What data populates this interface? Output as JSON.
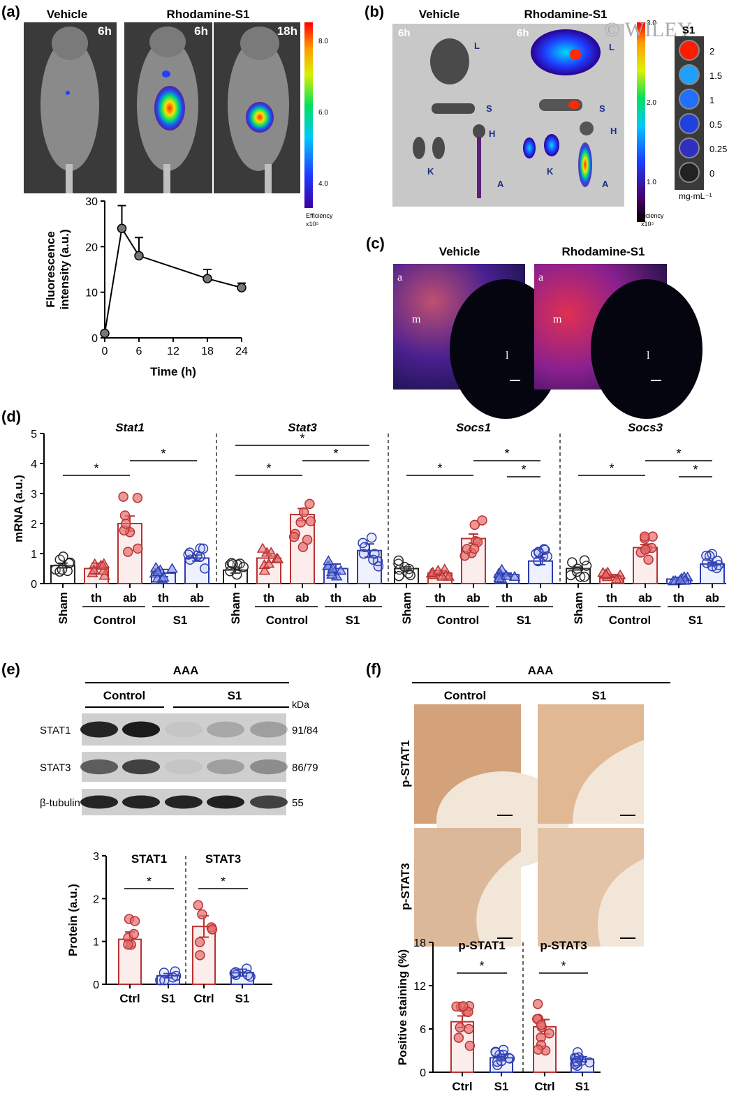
{
  "watermark": "© WILEY",
  "panel_a": {
    "label": "(a)",
    "col_vehicle": "Vehicle",
    "col_rhod": "Rhodamine-S1",
    "time_labels": [
      "6h",
      "6h",
      "18h"
    ],
    "colorbar": {
      "ticks": [
        "8.0",
        "6.0",
        "4.0"
      ],
      "label": "Efficiency",
      "unit": "x10⁵"
    },
    "chart_data": {
      "type": "line",
      "x": [
        0,
        3,
        6,
        18,
        24
      ],
      "y": [
        1,
        24,
        18,
        13,
        11
      ],
      "err": [
        0,
        5,
        4,
        2,
        1
      ],
      "xlabel": "Time (h)",
      "ylabel": "Fluorescence intensity (a.u.)",
      "xticks": [
        "0",
        "6",
        "12",
        "18",
        "24"
      ],
      "yticks": [
        "0",
        "10",
        "20",
        "30"
      ],
      "xlim": [
        0,
        24
      ],
      "ylim": [
        0,
        30
      ]
    }
  },
  "panel_b": {
    "label": "(b)",
    "col_vehicle": "Vehicle",
    "col_rhod": "Rhodamine-S1",
    "time_labels": [
      "6h",
      "6h"
    ],
    "organ_letters_vehicle": [
      "L",
      "S",
      "H",
      "K",
      "A"
    ],
    "organ_letters_rhod": [
      "L",
      "S",
      "H",
      "K",
      "A"
    ],
    "colorbar": {
      "ticks": [
        "3.0",
        "2.0",
        "1.0"
      ],
      "label": "Efficiency",
      "unit": "x10⁵"
    },
    "standards_title": "S1",
    "standards": [
      "2",
      "1.5",
      "1",
      "0.5",
      "0.25",
      "0"
    ],
    "standards_unit": "mg·mL⁻¹"
  },
  "panel_c": {
    "label": "(c)",
    "col_vehicle": "Vehicle",
    "col_rhod": "Rhodamine-S1",
    "letters": [
      "a",
      "m",
      "l"
    ]
  },
  "panel_d": {
    "label": "(d)",
    "ylabel": "mRNA (a.u.)",
    "yticks": [
      "0",
      "1",
      "2",
      "3",
      "4",
      "5"
    ],
    "ylim": [
      0,
      5
    ],
    "categories": [
      "Sham",
      "th",
      "ab",
      "th",
      "ab"
    ],
    "groups": [
      "Control",
      "S1"
    ],
    "chart_data": [
      {
        "type": "bar",
        "title": "Stat1",
        "values": [
          0.6,
          0.5,
          2.0,
          0.35,
          0.85
        ],
        "err": [
          0.08,
          0.18,
          0.25,
          0.12,
          0.1
        ]
      },
      {
        "type": "bar",
        "title": "Stat3",
        "values": [
          0.45,
          0.85,
          2.3,
          0.5,
          1.1
        ],
        "err": [
          0.1,
          0.15,
          0.2,
          0.15,
          0.22
        ]
      },
      {
        "type": "bar",
        "title": "Socs1",
        "values": [
          0.5,
          0.35,
          1.5,
          0.3,
          0.75
        ],
        "err": [
          0.06,
          0.08,
          0.15,
          0.05,
          0.12
        ]
      },
      {
        "type": "bar",
        "title": "Socs3",
        "values": [
          0.5,
          0.25,
          1.2,
          0.15,
          0.65
        ],
        "err": [
          0.05,
          0.05,
          0.1,
          0.06,
          0.06
        ]
      }
    ]
  },
  "panel_e": {
    "label": "(e)",
    "group_header": "AAA",
    "col_control": "Control",
    "col_s1": "S1",
    "kda_label": "kDa",
    "blot_rows": [
      {
        "name": "STAT1",
        "kda": "91/84"
      },
      {
        "name": "STAT3",
        "kda": "86/79"
      },
      {
        "name": "β-tubulin",
        "kda": "55"
      }
    ],
    "ylabel": "Protein (a.u.)",
    "yticks": [
      "0",
      "1",
      "2",
      "3"
    ],
    "xcats": [
      "Ctrl",
      "S1"
    ],
    "chart_data": [
      {
        "type": "bar",
        "title": "STAT1",
        "categories": [
          "Ctrl",
          "S1"
        ],
        "values": [
          1.05,
          0.2
        ],
        "err": [
          0.17,
          0.05
        ],
        "ylim": [
          0,
          3
        ]
      },
      {
        "type": "bar",
        "title": "STAT3",
        "categories": [
          "Ctrl",
          "S1"
        ],
        "values": [
          1.35,
          0.27
        ],
        "err": [
          0.25,
          0.08
        ],
        "ylim": [
          0,
          3
        ]
      }
    ]
  },
  "panel_f": {
    "label": "(f)",
    "group_header": "AAA",
    "col_control": "Control",
    "col_s1": "S1",
    "row_labels": [
      "p-STAT1",
      "p-STAT3"
    ],
    "ylabel": "Positive staining (%)",
    "yticks": [
      "0",
      "6",
      "12",
      "18"
    ],
    "xcats": [
      "Ctrl",
      "S1"
    ],
    "chart_data": [
      {
        "type": "bar",
        "title": "p-STAT1",
        "categories": [
          "Ctrl",
          "S1"
        ],
        "values": [
          7.0,
          2.0
        ],
        "err": [
          0.8,
          0.4
        ],
        "ylim": [
          0,
          18
        ]
      },
      {
        "type": "bar",
        "title": "p-STAT3",
        "categories": [
          "Ctrl",
          "S1"
        ],
        "values": [
          6.3,
          1.8
        ],
        "err": [
          1.0,
          0.35
        ],
        "ylim": [
          0,
          18
        ]
      }
    ]
  },
  "sig_mark": "*",
  "colors": {
    "sham": "#222222",
    "control": "#b83232",
    "control_fill": "#e56b6b",
    "s1": "#2d3db0",
    "s1_fill": "#7a8ee8"
  }
}
